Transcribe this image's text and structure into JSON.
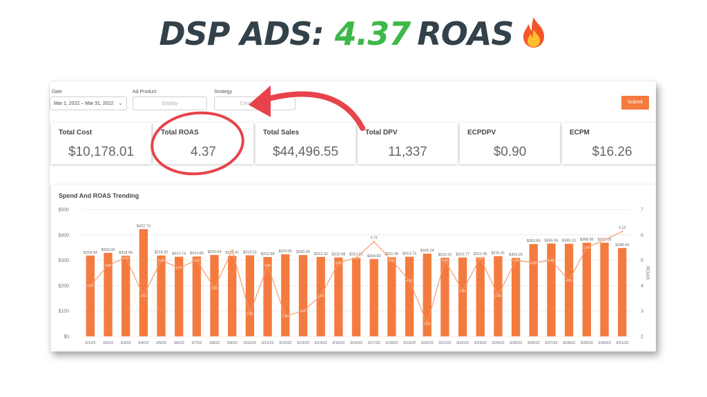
{
  "headline": {
    "prefix": "DSP ADS:",
    "number": "4.37",
    "suffix": "ROAS",
    "number_color": "#3fb84a",
    "text_color": "#33414a",
    "emoji": "flame-icon"
  },
  "filters": {
    "date_label": "Date",
    "date_value": "Mar 1, 2022 – Mar 31, 2022",
    "ad_product_label": "Ad Product",
    "ad_product_placeholder": "Display",
    "strategy_label": "Strategy",
    "strategy_placeholder": "Consideration",
    "submit_label": "Submit"
  },
  "metrics": [
    {
      "label": "Total Cost",
      "value": "$10,178.01"
    },
    {
      "label": "Total ROAS",
      "value": "4.37"
    },
    {
      "label": "Total Sales",
      "value": "$44,496.55"
    },
    {
      "label": "Total DPV",
      "value": "11,337"
    },
    {
      "label": "ECPDPV",
      "value": "$0.90"
    },
    {
      "label": "ECPM",
      "value": "$16.26"
    }
  ],
  "colors": {
    "accent": "#f47b3f",
    "highlight": "#e8434b"
  },
  "chart_data": {
    "type": "bar",
    "title": "Spend And ROAS Trending",
    "categories": [
      "3/1/22",
      "3/2/22",
      "3/3/22",
      "3/4/22",
      "3/5/22",
      "3/6/22",
      "3/7/22",
      "3/8/22",
      "3/9/22",
      "3/10/22",
      "3/11/22",
      "3/12/22",
      "3/13/22",
      "3/14/22",
      "3/15/22",
      "3/16/22",
      "3/17/22",
      "3/18/22",
      "3/19/22",
      "3/20/22",
      "3/21/22",
      "3/22/22",
      "3/23/22",
      "3/24/22",
      "3/25/22",
      "3/26/22",
      "3/27/22",
      "3/28/22",
      "3/29/22",
      "3/30/22",
      "3/31/22"
    ],
    "series": [
      {
        "type": "bar",
        "axis": "left",
        "values": [
          318.54,
          329.05,
          318.06,
          422.73,
          318.82,
          313.74,
          314.86,
          320.64,
          317.47,
          319.51,
          312.58,
          323.81,
          320.45,
          313.1,
          310.98,
          310.51,
          304.83,
          311.95,
          313.73,
          326.24,
          310.22,
          310.77,
          311.95,
          316.41,
          309.26,
          363.8,
          365.96,
          365.1,
          368.95,
          369.1,
          348.44
        ],
        "labels": [
          "$318.54",
          "$329.05",
          "$318.06",
          "$422.73",
          "$318.82",
          "$313.74",
          "$314.86",
          "$320.64",
          "$317.47",
          "$319.51",
          "$312.58",
          "$323.81",
          "$320.45",
          "$313.10",
          "$310.98",
          "$310.51",
          "$304.83",
          "$311.95",
          "$313.73",
          "$326.24",
          "$310.22",
          "$310.77",
          "$311.95",
          "$316.41",
          "$309.26",
          "$363.80",
          "$365.96",
          "$365.10",
          "$368.95",
          "$369.10",
          "$348.44"
        ]
      },
      {
        "type": "line",
        "axis": "right",
        "values": [
          4.0,
          4.8,
          5.1,
          3.6,
          5.0,
          4.7,
          5.0,
          3.9,
          5.4,
          2.9,
          4.8,
          2.8,
          3.0,
          3.6,
          4.9,
          5.1,
          5.73,
          5.0,
          4.2,
          2.5,
          5.0,
          3.8,
          5.1,
          3.6,
          5.0,
          4.9,
          5.0,
          4.2,
          5.5,
          5.8,
          6.13
        ],
        "labels": [
          "4.00",
          "4.80",
          "5.10",
          "3.60",
          "5.00",
          "4.70",
          "5.00",
          "3.90",
          "5.40",
          "2.90",
          "4.80",
          "2.80",
          "3.00",
          "3.60",
          "4.90",
          "5.10",
          "5.73",
          "5.00",
          "4.20",
          "2.50",
          "5.00",
          "3.80",
          "5.10",
          "3.60",
          "5.00",
          "4.90",
          "5.00",
          "4.20",
          "5.50",
          "5.80",
          "6.13"
        ]
      }
    ],
    "y_left": {
      "ticks": [
        "$0",
        "$100",
        "$200",
        "$300",
        "$400",
        "$500"
      ],
      "lim": [
        0,
        500
      ]
    },
    "y_right": {
      "ticks": [
        "2",
        "3",
        "4",
        "5",
        "6",
        "7"
      ],
      "lim": [
        2,
        7
      ],
      "label": "ROAS"
    },
    "grid": true
  }
}
